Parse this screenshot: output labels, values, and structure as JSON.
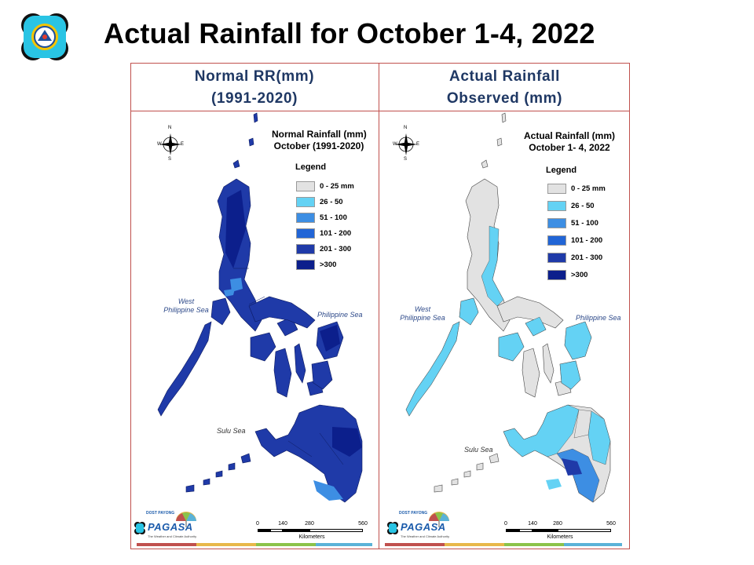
{
  "header": {
    "title": "Actual Rainfall for October 1-4, 2022"
  },
  "legend": {
    "title": "Legend",
    "classes": [
      {
        "label": "0 - 25 mm",
        "color": "#e2e2e2"
      },
      {
        "label": "26 - 50",
        "color": "#64d2f4"
      },
      {
        "label": "51 - 100",
        "color": "#3d8ee3"
      },
      {
        "label": "101 - 200",
        "color": "#2165d6"
      },
      {
        "label": "201 - 300",
        "color": "#1f3aa8"
      },
      {
        "label": ">300",
        "color": "#0c1f8c"
      }
    ]
  },
  "panels": {
    "left": {
      "header_line1": "Normal RR(mm)",
      "header_line2": "(1991-2020)",
      "map_title_line1": "Normal Rainfall (mm)",
      "map_title_line2": "October (1991-2020)"
    },
    "right": {
      "header_line1": "Actual Rainfall",
      "header_line2": "Observed  (mm)",
      "map_title_line1": "Actual Rainfall (mm)",
      "map_title_line2": "October 1- 4, 2022"
    }
  },
  "labels": {
    "west_sea_line1": "West",
    "west_sea_line2": "Philippine Sea",
    "philippine_sea": "Philippine Sea",
    "sulu_sea": "Sulu Sea",
    "compass_n": "N",
    "compass_s": "S",
    "compass_e": "E",
    "compass_w": "W"
  },
  "scalebar": {
    "ticks": [
      "0",
      "140",
      "280",
      "560"
    ],
    "unit": "Kilometers"
  },
  "branding": {
    "small": "DOST PAYONG",
    "name": "PAGASA",
    "tagline": "The Weather and Climate Authority"
  },
  "colors": {
    "frame_border": "#c0504d",
    "header_text": "#1f3864",
    "sea_label": "#2e4a8a",
    "stripe": [
      "#c0504d",
      "#e8b84a",
      "#8bc34a",
      "#5ab2d8"
    ]
  },
  "icons": {
    "logo": "pagasa-seal-icon",
    "compass": "compass-rose-icon",
    "brand": "pagasa-umbrella-icon"
  }
}
